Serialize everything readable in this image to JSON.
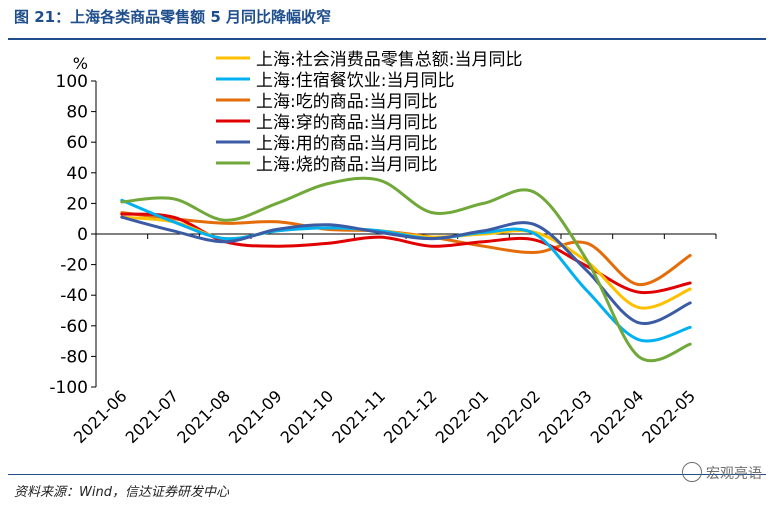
{
  "figure": {
    "title": "图 21：上海各类商品零售额 5 月同比降幅收窄",
    "source": "资料来源：Wind，信达证券研发中心",
    "watermark": "宏观亮语"
  },
  "chart_data": {
    "type": "line",
    "title": "",
    "xlabel": "",
    "ylabel": "%",
    "ylim": [
      -100,
      100
    ],
    "yticks": [
      -100,
      -80,
      -60,
      -40,
      -20,
      0,
      20,
      40,
      60,
      80,
      100
    ],
    "legend_position": "top-center",
    "grid": false,
    "categories": [
      "2021-06",
      "2021-07",
      "2021-08",
      "2021-09",
      "2021-10",
      "2021-11",
      "2021-12",
      "2022-01",
      "2022-02",
      "2022-03",
      "2022-04",
      "2022-05"
    ],
    "series": [
      {
        "name": "上海:社会消费品零售总额:当月同比",
        "color": "#FFC000",
        "values": [
          11,
          8,
          -3,
          2,
          4,
          2,
          -2,
          0,
          1,
          -18,
          -48,
          -36
        ]
      },
      {
        "name": "上海:住宿餐饮业:当月同比",
        "color": "#00B0F0",
        "values": [
          22,
          8,
          -3,
          2,
          4,
          2,
          -3,
          1,
          0,
          -37,
          -69,
          -61
        ]
      },
      {
        "name": "上海:吃的商品:当月同比",
        "color": "#E46C0A",
        "values": [
          14,
          10,
          7,
          8,
          3,
          2,
          -2,
          -8,
          -12,
          -6,
          -33,
          -14
        ]
      },
      {
        "name": "上海:穿的商品:当月同比",
        "color": "#E00000",
        "values": [
          13,
          11,
          -5,
          -8,
          -6,
          -2,
          -8,
          -5,
          -4,
          -21,
          -38,
          -32
        ]
      },
      {
        "name": "上海:用的商品:当月同比",
        "color": "#3B5BA5",
        "values": [
          11,
          2,
          -5,
          3,
          6,
          1,
          -3,
          2,
          6,
          -24,
          -58,
          -45
        ]
      },
      {
        "name": "上海:烧的商品:当月同比",
        "color": "#70A83A",
        "values": [
          21,
          23,
          9,
          20,
          33,
          35,
          14,
          20,
          27,
          -17,
          -80,
          -72
        ]
      }
    ]
  }
}
